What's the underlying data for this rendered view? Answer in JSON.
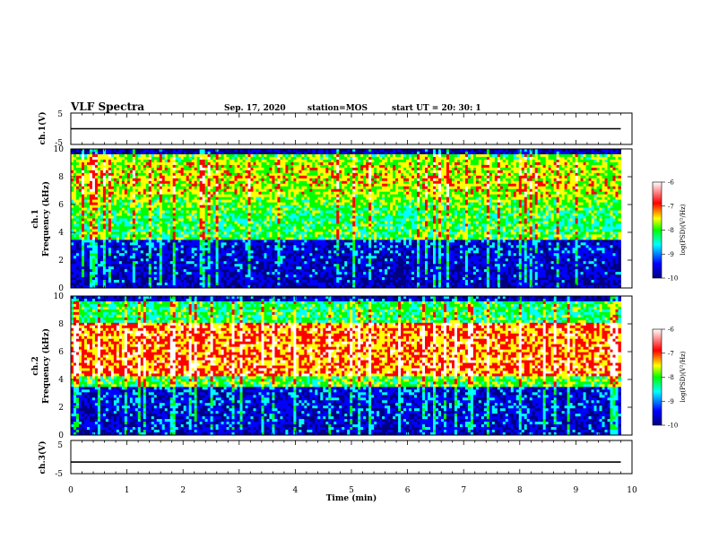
{
  "header": {
    "title": "VLF Spectra",
    "date": "Sep. 17, 2020",
    "station": "station=MOS",
    "start": "start UT =  20: 30: 1"
  },
  "chart_data": [
    {
      "type": "line",
      "panel": "ch1-waveform",
      "ylabel": "ch.1(V)",
      "ylim": [
        -5,
        5
      ],
      "yticks": [
        "5",
        "-5"
      ],
      "xlim": [
        0,
        10
      ],
      "series": [
        {
          "x": [
            0,
            9.8
          ],
          "values": [
            0,
            0
          ]
        }
      ]
    },
    {
      "type": "heatmap",
      "panel": "ch1-spectrogram",
      "ylabel": "ch.1\nFrequency (kHz)",
      "ylim": [
        0,
        10
      ],
      "yticks": [
        "0",
        "2",
        "4",
        "6",
        "8",
        "10"
      ],
      "xlim": [
        0,
        10
      ],
      "data_end_min": 9.8,
      "colorbar": {
        "label": "log(PSD)(V²/Hz)",
        "range": [
          -10,
          -6
        ],
        "ticks": [
          "-6",
          "-7",
          "-8",
          "-9",
          "-10"
        ]
      }
    },
    {
      "type": "heatmap",
      "panel": "ch2-spectrogram",
      "ylabel": "ch.2\nFrequency (kHz)",
      "ylim": [
        0,
        10
      ],
      "yticks": [
        "0",
        "2",
        "4",
        "6",
        "8",
        "10"
      ],
      "xlim": [
        0,
        10
      ],
      "data_end_min": 9.8,
      "colorbar": {
        "label": "log(PSD)(V²/Hz)",
        "range": [
          -10,
          -6
        ],
        "ticks": [
          "-6",
          "-7",
          "-8",
          "-9",
          "-10"
        ]
      }
    },
    {
      "type": "line",
      "panel": "ch3-waveform",
      "ylabel": "ch.3(V)",
      "ylim": [
        -5,
        5
      ],
      "yticks": [
        "5",
        "-5"
      ],
      "xlim": [
        0,
        10
      ],
      "xlabel": "Time (min)",
      "xticks": [
        "0",
        "1",
        "2",
        "3",
        "4",
        "5",
        "6",
        "7",
        "8",
        "9",
        "10"
      ],
      "series": [
        {
          "x": [
            0,
            9.8
          ],
          "values": [
            -1.5,
            -1.5
          ]
        }
      ]
    }
  ],
  "colors": {
    "colormap": [
      "#000080",
      "#0000ff",
      "#00ffff",
      "#00ff00",
      "#ffff00",
      "#ff0000",
      "#ffffff"
    ]
  }
}
